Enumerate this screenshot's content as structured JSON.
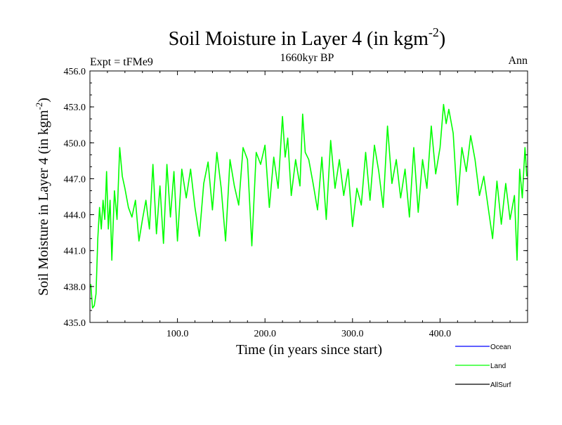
{
  "chart_data": {
    "type": "line",
    "title": "Soil Moisture in Layer 4 (in kgm",
    "title_superscript": "-2",
    "title_close": ")",
    "subtitle_left": "Expt = tFMe9",
    "subtitle_center": "1660kyr BP",
    "subtitle_right": "Ann",
    "xlabel": "Time (in years since start)",
    "ylabel": "Soil Moisture in Layer 4 (in kgm",
    "ylabel_superscript": "-2",
    "ylabel_close": ")",
    "xlim": [
      0,
      500
    ],
    "ylim": [
      435.0,
      456.0
    ],
    "x_ticks": [
      {
        "value": 100,
        "label": "100.0"
      },
      {
        "value": 200,
        "label": "200.0"
      },
      {
        "value": 300,
        "label": "300.0"
      },
      {
        "value": 400,
        "label": "400.0"
      }
    ],
    "y_ticks": [
      {
        "value": 435.0,
        "label": "435.0"
      },
      {
        "value": 438.0,
        "label": "438.0"
      },
      {
        "value": 441.0,
        "label": "441.0"
      },
      {
        "value": 444.0,
        "label": "444.0"
      },
      {
        "value": 447.0,
        "label": "447.0"
      },
      {
        "value": 450.0,
        "label": "450.0"
      },
      {
        "value": 453.0,
        "label": "453.0"
      },
      {
        "value": 456.0,
        "label": "456.0"
      }
    ],
    "legend": [
      {
        "name": "Ocean",
        "color": "#0000ff"
      },
      {
        "name": "Land",
        "color": "#00ff00"
      },
      {
        "name": "AllSurf",
        "color": "#000000"
      }
    ],
    "series": [
      {
        "name": "Land",
        "color": "#00ff00",
        "x": [
          1,
          3,
          5,
          7,
          9,
          11,
          13,
          15,
          17,
          19,
          21,
          23,
          25,
          28,
          31,
          34,
          37,
          40,
          44,
          48,
          52,
          56,
          60,
          64,
          68,
          72,
          76,
          80,
          84,
          88,
          92,
          96,
          100,
          105,
          110,
          115,
          120,
          125,
          130,
          135,
          140,
          145,
          150,
          155,
          160,
          165,
          170,
          175,
          180,
          185,
          190,
          195,
          200,
          205,
          210,
          215,
          220,
          223,
          226,
          230,
          235,
          240,
          243,
          246,
          250,
          255,
          260,
          265,
          270,
          275,
          280,
          285,
          290,
          295,
          300,
          305,
          310,
          315,
          320,
          325,
          330,
          335,
          340,
          345,
          350,
          355,
          360,
          365,
          370,
          375,
          380,
          385,
          390,
          395,
          400,
          404,
          407,
          410,
          415,
          420,
          425,
          430,
          435,
          440,
          445,
          450,
          455,
          460,
          465,
          470,
          475,
          480,
          485,
          488,
          491,
          494,
          497,
          499
        ],
        "values": [
          438.2,
          436.2,
          436.4,
          437.4,
          442.0,
          444.6,
          442.8,
          445.2,
          443.6,
          447.6,
          442.8,
          445.2,
          440.2,
          446.0,
          443.6,
          449.6,
          447.2,
          446.2,
          444.6,
          443.8,
          445.2,
          441.8,
          443.6,
          445.2,
          442.8,
          448.2,
          442.4,
          446.4,
          441.6,
          448.2,
          443.8,
          447.6,
          441.8,
          447.8,
          445.4,
          447.8,
          444.6,
          442.2,
          446.6,
          448.4,
          444.4,
          449.2,
          446.2,
          441.8,
          448.6,
          446.4,
          444.8,
          449.6,
          448.6,
          441.4,
          449.2,
          448.2,
          449.8,
          444.6,
          448.8,
          446.2,
          452.2,
          448.8,
          450.4,
          445.6,
          448.6,
          446.4,
          452.4,
          449.2,
          448.6,
          446.6,
          444.4,
          448.8,
          443.6,
          450.2,
          446.2,
          448.6,
          445.6,
          447.8,
          443.0,
          446.2,
          444.8,
          449.2,
          445.2,
          449.8,
          447.6,
          444.6,
          451.4,
          446.6,
          448.6,
          445.4,
          447.8,
          443.8,
          449.6,
          444.2,
          448.6,
          446.2,
          451.4,
          447.4,
          449.6,
          453.2,
          451.6,
          452.8,
          450.8,
          444.8,
          449.6,
          447.6,
          450.6,
          448.6,
          445.6,
          447.2,
          444.6,
          442.0,
          446.8,
          443.2,
          446.6,
          443.6,
          445.6,
          440.2,
          447.8,
          445.4,
          449.6,
          447.2
        ]
      }
    ]
  }
}
